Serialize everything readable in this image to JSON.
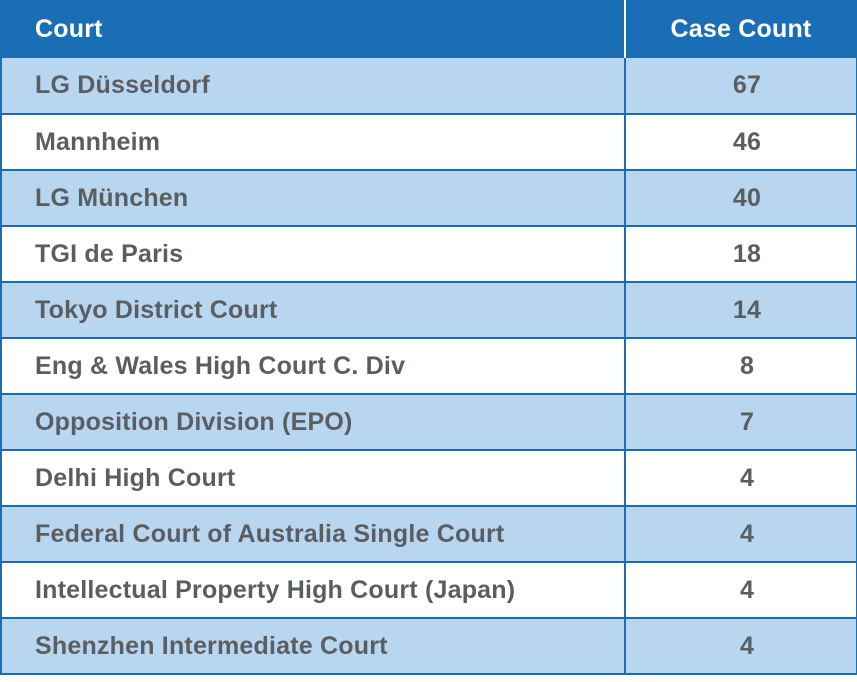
{
  "chart_data": {
    "type": "table",
    "columns": [
      "Court",
      "Case Count"
    ],
    "rows": [
      {
        "court": "LG Düsseldorf",
        "count": "67"
      },
      {
        "court": "Mannheim",
        "count": "46"
      },
      {
        "court": "LG München",
        "count": "40"
      },
      {
        "court": "TGI de Paris",
        "count": "18"
      },
      {
        "court": "Tokyo District Court",
        "count": "14"
      },
      {
        "court": "Eng & Wales High Court C. Div",
        "count": "8"
      },
      {
        "court": "Opposition Division (EPO)",
        "count": "7"
      },
      {
        "court": "Delhi High Court",
        "count": "4"
      },
      {
        "court": "Federal Court of Australia Single Court",
        "count": "4"
      },
      {
        "court": "Intellectual Property High Court (Japan)",
        "count": "4"
      },
      {
        "court": "Shenzhen Intermediate Court",
        "count": "4"
      }
    ]
  },
  "colors": {
    "header_bg": "#1a6eb5",
    "header_text": "#ffffff",
    "row_alt_bg": "#b8d6ef",
    "row_bg": "#ffffff",
    "cell_text": "#5a5e63",
    "grid_line": "#1a6eb5"
  }
}
